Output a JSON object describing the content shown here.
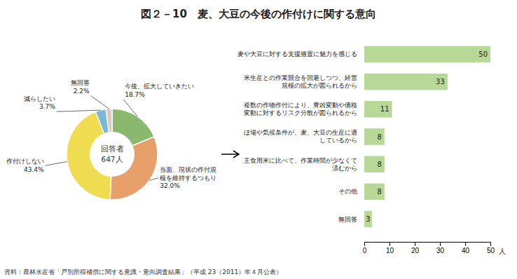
{
  "chart_data": [
    {
      "type": "pie",
      "title": "図２－10　麦、大豆の今後の作付けに関する意向",
      "categories": [
        "今後、拡大していきたい",
        "当面、現状の作付規\n模を維持するつもり",
        "作付けしない",
        "減らしたい",
        "無回答"
      ],
      "values": [
        18.7,
        32.0,
        43.4,
        3.7,
        2.2
      ],
      "value_labels": [
        "18.7%",
        "32.0%",
        "43.4%",
        "3.7%",
        "2.2%"
      ],
      "colors": [
        "#8ab86e",
        "#e8a06a",
        "#f0dc50",
        "#7ab8d8",
        "#e0c8c0"
      ],
      "annotations": [
        "回答者",
        "647人"
      ],
      "data_labels": true
    },
    {
      "type": "bar",
      "orientation": "horizontal",
      "categories": [
        "麦や大豆に対する支援措置に魅力を感じる",
        "米生産との作業競合を回避しつつ、経営\n規模の拡大が図られるから",
        "複数の作物作付により、豊凶変動や価格\n変動に対するリスク分散が図られるから",
        "ほ場や気候条件が、麦、大豆の生産に適\nしているから",
        "主食用米に比べて、作業時間が少なくて\n済むから",
        "その他",
        "無回答"
      ],
      "values": [
        50,
        33,
        11,
        8,
        8,
        8,
        3
      ],
      "color": "#b8d898",
      "xlabel": "人",
      "xlim": [
        0,
        50
      ],
      "xticks": [
        0,
        10,
        20,
        30,
        40,
        50
      ],
      "data_labels": true,
      "annotations": [
        "資料：農林水産省「戸別所得補償に関する意識・意向調査結果」（平成 23（2011）年４月公表）"
      ]
    }
  ]
}
